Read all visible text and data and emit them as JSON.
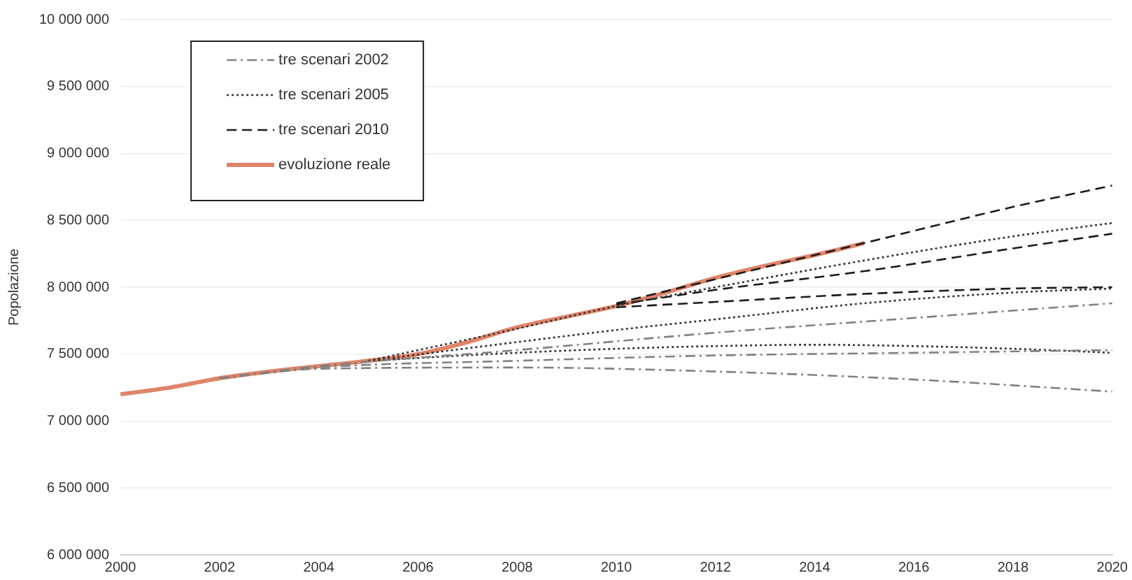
{
  "chart_data": {
    "type": "line",
    "ylabel": "Popolazione",
    "xlim": [
      2000,
      2020
    ],
    "xticks": [
      2000,
      2002,
      2004,
      2006,
      2008,
      2010,
      2012,
      2014,
      2016,
      2018,
      2020
    ],
    "ylim": [
      6000000,
      10000000
    ],
    "yticks": [
      {
        "value": 6000000,
        "label": "6 000 000"
      },
      {
        "value": 6500000,
        "label": "6 500 000"
      },
      {
        "value": 7000000,
        "label": "7 000 000"
      },
      {
        "value": 7500000,
        "label": "7 500 000"
      },
      {
        "value": 8000000,
        "label": "8 000 000"
      },
      {
        "value": 8500000,
        "label": "8 500 000"
      },
      {
        "value": 9000000,
        "label": "9 000 000"
      },
      {
        "value": 9500000,
        "label": "9 500 000"
      },
      {
        "value": 10000000,
        "label": "10 000 000"
      }
    ],
    "grid": "y",
    "legend": "top left",
    "marker": "none",
    "series": [
      {
        "name": "tre scenari 2002",
        "color": "#808080",
        "line_style": "dashdot",
        "x": [
          2002,
          2004,
          2008,
          2012,
          2016,
          2020
        ],
        "values": [
          7320000,
          7410000,
          7530000,
          7660000,
          7770000,
          7880000
        ]
      },
      {
        "color": "#808080",
        "line_style": "dashdot",
        "x": [
          2002,
          2004,
          2008,
          2012,
          2016,
          2020
        ],
        "values": [
          7320000,
          7400000,
          7450000,
          7490000,
          7510000,
          7530000
        ]
      },
      {
        "color": "#808080",
        "line_style": "dashdot",
        "x": [
          2002,
          2004,
          2008,
          2012,
          2016,
          2020
        ],
        "values": [
          7320000,
          7390000,
          7400000,
          7370000,
          7310000,
          7220000
        ]
      },
      {
        "name": "tre scenari 2005",
        "color": "#333333",
        "line_style": "dotted",
        "x": [
          2005,
          2008,
          2010,
          2012,
          2015,
          2018,
          2020
        ],
        "values": [
          7450000,
          7690000,
          7860000,
          8000000,
          8200000,
          8380000,
          8480000
        ]
      },
      {
        "color": "#333333",
        "line_style": "dotted",
        "x": [
          2005,
          2008,
          2010,
          2012,
          2015,
          2018,
          2020
        ],
        "values": [
          7450000,
          7590000,
          7680000,
          7760000,
          7880000,
          7960000,
          7990000
        ]
      },
      {
        "color": "#333333",
        "line_style": "dotted",
        "x": [
          2005,
          2008,
          2010,
          2012,
          2014,
          2016,
          2018,
          2020
        ],
        "values": [
          7450000,
          7510000,
          7540000,
          7560000,
          7570000,
          7560000,
          7540000,
          7510000
        ]
      },
      {
        "name": "tre scenari 2010",
        "color": "#1a1a1a",
        "line_style": "dashed",
        "x": [
          2010,
          2012,
          2015,
          2018,
          2020
        ],
        "values": [
          7880000,
          8060000,
          8330000,
          8600000,
          8760000
        ]
      },
      {
        "color": "#1a1a1a",
        "line_style": "dashed",
        "x": [
          2010,
          2012,
          2015,
          2018,
          2020
        ],
        "values": [
          7870000,
          7980000,
          8120000,
          8290000,
          8400000
        ]
      },
      {
        "color": "#1a1a1a",
        "line_style": "dashed",
        "x": [
          2010,
          2012,
          2015,
          2018,
          2020
        ],
        "values": [
          7850000,
          7890000,
          7950000,
          7990000,
          8000000
        ]
      },
      {
        "name": "evoluzione reale",
        "color": "#e0846a",
        "line_style": "solid",
        "x": [
          2000,
          2001,
          2002,
          2003,
          2004,
          2005,
          2006,
          2007,
          2008,
          2009,
          2010,
          2011,
          2012,
          2013,
          2014,
          2015
        ],
        "values": [
          7200000,
          7250000,
          7320000,
          7370000,
          7410000,
          7450000,
          7500000,
          7590000,
          7700000,
          7780000,
          7860000,
          7960000,
          8070000,
          8160000,
          8240000,
          8330000
        ]
      }
    ]
  }
}
